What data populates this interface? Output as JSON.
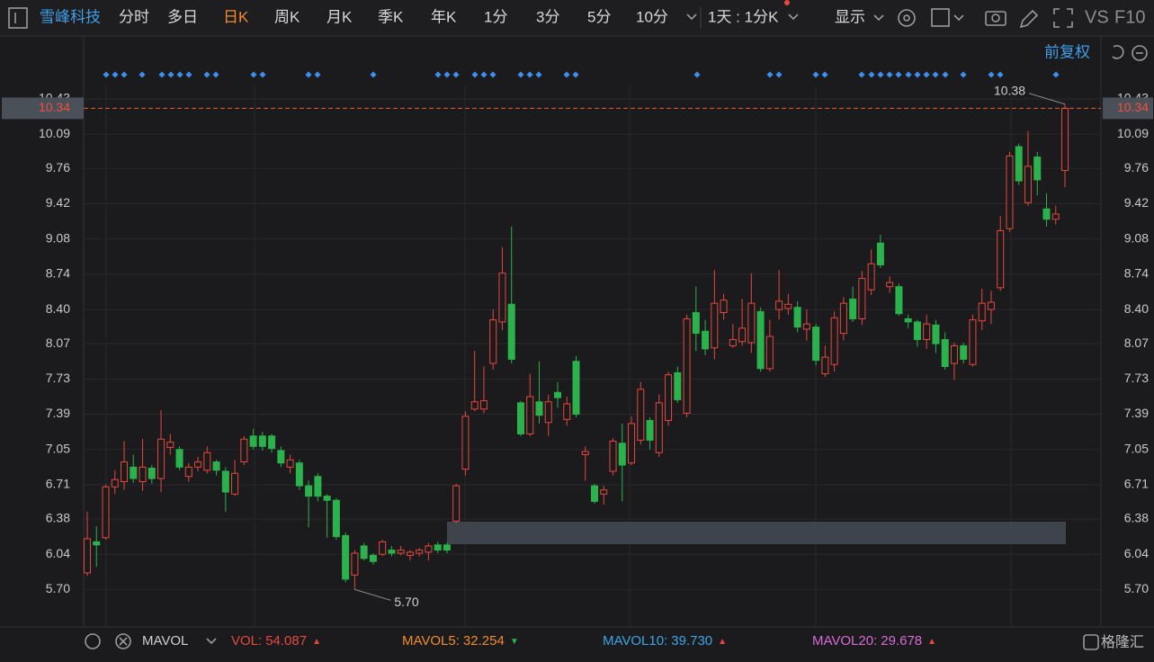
{
  "toolbar": {
    "stock_name": "雪峰科技",
    "tabs": [
      "分时",
      "多日",
      "日K",
      "周K",
      "月K",
      "季K",
      "年K",
      "1分",
      "3分",
      "5分",
      "10分"
    ],
    "active_tab": 2,
    "interval": "1天 : 1分K",
    "display": "显示",
    "compare": "VS",
    "f10": "F10"
  },
  "adjust": "前复权",
  "chart_data": {
    "type": "candlestick",
    "open": [
      5.86,
      6.16,
      6.2,
      6.69,
      6.74,
      6.88,
      6.74,
      6.87,
      6.77,
      7.07,
      7.05,
      6.79,
      6.88,
      6.85,
      6.93,
      6.84,
      6.62,
      6.93,
      7.18,
      7.18,
      7.18,
      7.04,
      6.88,
      6.92,
      6.7,
      6.79,
      6.6,
      6.56,
      6.22,
      5.84,
      6.12,
      6.03,
      6.04,
      6.08,
      6.05,
      6.03,
      6.05,
      6.06,
      6.13,
      6.13,
      6.36,
      6.86,
      7.44,
      7.44,
      7.88,
      8.28,
      8.45,
      7.5,
      7.2,
      7.51,
      7.31,
      7.6,
      7.34,
      7.9,
      7.0,
      6.7,
      6.62,
      6.84,
      7.11,
      6.92,
      7.14,
      7.33,
      7.02,
      7.33,
      7.79,
      7.4,
      8.37,
      8.19,
      8.03,
      8.37,
      8.05,
      8.09,
      8.08,
      8.38,
      7.83,
      8.4,
      8.41,
      8.42,
      8.21,
      8.23,
      7.78,
      7.87,
      8.17,
      8.5,
      8.31,
      8.59,
      9.04,
      8.62,
      8.62,
      8.31,
      8.28,
      8.11,
      8.25,
      8.11,
      7.88,
      8.05,
      7.87,
      8.29,
      8.4,
      8.61,
      9.18,
      9.97,
      9.43,
      9.87,
      9.37,
      9.27,
      9.74
    ],
    "high": [
      6.45,
      6.31,
      6.71,
      6.85,
      7.13,
      7.0,
      7.15,
      6.9,
      7.43,
      7.2,
      7.08,
      6.92,
      6.98,
      7.08,
      6.95,
      6.88,
      6.95,
      7.18,
      7.25,
      7.22,
      7.2,
      7.08,
      7.0,
      6.95,
      6.75,
      6.82,
      6.62,
      6.58,
      6.25,
      6.08,
      6.15,
      6.05,
      6.18,
      6.12,
      6.12,
      6.08,
      6.1,
      6.15,
      6.16,
      6.15,
      6.72,
      7.42,
      8.0,
      7.85,
      8.4,
      9.0,
      9.2,
      7.52,
      7.78,
      7.9,
      7.58,
      7.7,
      7.56,
      7.95,
      7.08,
      6.72,
      6.7,
      7.16,
      7.3,
      7.37,
      7.7,
      7.36,
      7.58,
      7.8,
      7.85,
      8.35,
      8.62,
      8.3,
      8.78,
      8.55,
      8.26,
      8.5,
      8.75,
      8.42,
      8.3,
      8.78,
      8.55,
      8.48,
      8.4,
      8.26,
      8.05,
      8.38,
      8.52,
      8.62,
      8.77,
      8.98,
      9.12,
      8.72,
      8.65,
      8.35,
      8.3,
      8.35,
      8.3,
      8.18,
      8.08,
      8.08,
      8.35,
      8.6,
      8.58,
      9.3,
      9.92,
      10.0,
      10.12,
      9.92,
      9.52,
      9.4,
      10.38
    ],
    "low": [
      5.83,
      5.92,
      6.18,
      6.62,
      6.66,
      6.73,
      6.65,
      6.72,
      6.64,
      7.0,
      6.85,
      6.74,
      6.84,
      6.82,
      6.8,
      6.45,
      6.6,
      6.9,
      7.05,
      7.04,
      7.02,
      6.88,
      6.82,
      6.66,
      6.3,
      6.55,
      6.2,
      6.18,
      5.77,
      5.7,
      5.98,
      5.94,
      6.02,
      6.02,
      6.03,
      5.98,
      6.02,
      5.98,
      6.05,
      6.05,
      6.34,
      6.8,
      7.42,
      7.4,
      7.82,
      8.2,
      7.88,
      7.18,
      7.18,
      7.3,
      7.18,
      7.45,
      7.28,
      7.36,
      6.75,
      6.53,
      6.52,
      6.8,
      6.55,
      6.9,
      7.1,
      7.05,
      6.98,
      7.28,
      7.5,
      7.36,
      8.0,
      7.96,
      7.92,
      8.3,
      8.03,
      8.05,
      7.98,
      7.8,
      7.8,
      8.3,
      8.35,
      8.18,
      8.1,
      7.86,
      7.75,
      7.8,
      8.1,
      8.28,
      8.25,
      8.54,
      8.8,
      8.56,
      8.34,
      8.22,
      8.04,
      8.02,
      7.98,
      7.82,
      7.72,
      7.88,
      7.85,
      8.2,
      8.26,
      8.58,
      9.15,
      9.6,
      9.4,
      9.5,
      9.2,
      9.22,
      9.58
    ],
    "close": [
      6.19,
      6.13,
      6.69,
      6.76,
      6.93,
      6.77,
      6.88,
      6.77,
      7.15,
      7.12,
      6.88,
      6.88,
      6.93,
      7.02,
      6.85,
      6.64,
      6.82,
      7.15,
      7.08,
      7.08,
      7.06,
      6.92,
      6.95,
      6.7,
      6.6,
      6.6,
      6.56,
      6.21,
      5.8,
      6.05,
      6.0,
      5.97,
      6.16,
      6.05,
      6.08,
      6.06,
      6.08,
      6.12,
      6.08,
      6.08,
      6.7,
      7.37,
      7.51,
      7.52,
      8.3,
      8.75,
      7.92,
      7.2,
      7.56,
      7.38,
      7.51,
      7.55,
      7.49,
      7.39,
      7.03,
      6.55,
      6.66,
      7.13,
      6.9,
      7.3,
      7.63,
      7.14,
      7.5,
      7.77,
      7.53,
      8.31,
      8.17,
      8.02,
      8.46,
      8.49,
      8.11,
      8.22,
      8.46,
      7.83,
      8.14,
      8.48,
      8.45,
      8.23,
      8.26,
      7.91,
      7.94,
      8.32,
      8.46,
      8.31,
      8.7,
      8.84,
      8.83,
      8.66,
      8.36,
      8.28,
      8.11,
      8.26,
      8.07,
      7.85,
      8.05,
      7.92,
      8.3,
      8.46,
      8.47,
      9.16,
      9.88,
      9.64,
      9.78,
      9.65,
      9.27,
      9.32,
      10.34
    ],
    "up_color": "#e8473d",
    "down_color": "#2bb24c",
    "ylim": [
      5.4,
      10.56
    ],
    "yticks": [
      10.43,
      10.09,
      9.76,
      9.42,
      9.08,
      8.74,
      {
        "value": 8.4,
        "label": "8.40"
      },
      8.07,
      7.73,
      7.39,
      7.05,
      6.71,
      6.38,
      6.04,
      {
        "value": 5.7,
        "label": "5.70"
      }
    ],
    "grid": true,
    "last_price": {
      "value": 10.34,
      "label": "10.34"
    },
    "high_label": "10.38",
    "low_label": "5.70"
  },
  "indicators": {
    "name": "MAVOL",
    "items": [
      {
        "label": "VOL:",
        "value": "54.087",
        "arrow": "▲",
        "color": "#e8473d",
        "arrow_color": "#e8473d"
      },
      {
        "label": "MAVOL5:",
        "value": "32.254",
        "arrow": "▼",
        "color": "#f08a2c",
        "arrow_color": "#2bb24c"
      },
      {
        "label": "MAVOL10:",
        "value": "39.730",
        "arrow": "▲",
        "color": "#3aa6e8",
        "arrow_color": "#e8473d"
      },
      {
        "label": "MAVOL20:",
        "value": "29.678",
        "arrow": "▲",
        "color": "#d66bd6",
        "arrow_color": "#e8473d"
      }
    ]
  },
  "watermark": "格隆汇"
}
